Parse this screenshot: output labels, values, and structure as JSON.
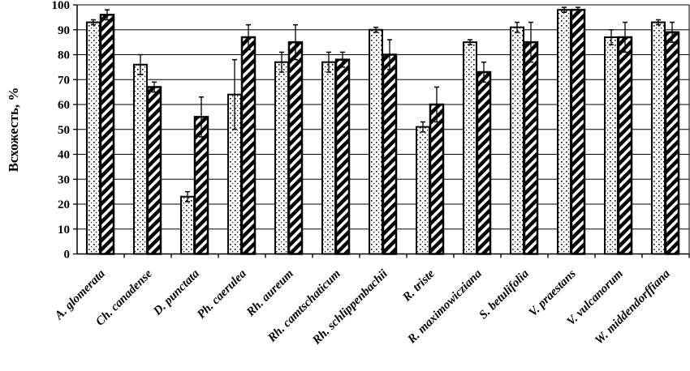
{
  "chart_data": {
    "type": "bar",
    "title": "",
    "xlabel": "",
    "ylabel": "Всхожесть, %",
    "ylim": [
      0,
      100
    ],
    "yticks": [
      "0",
      "10",
      "20",
      "30",
      "40",
      "50",
      "60",
      "70",
      "80",
      "90",
      "100"
    ],
    "grid": true,
    "categories": [
      "A. glomerata",
      "Ch. canadense",
      "D. punctata",
      "Ph. caerulea",
      "Rh. aureum",
      "Rh. camtschaticum",
      "Rh. schlippenbachii",
      "R. triste",
      "R. maximowicziana",
      "S. betulifolia",
      "V. praestans",
      "V. vulcanorum",
      "W. middendorffiana"
    ],
    "series": [
      {
        "pattern": "dotted",
        "values": [
          93,
          76,
          23,
          64,
          77,
          77,
          90,
          51,
          85,
          91,
          98,
          87,
          93
        ],
        "errors": [
          1,
          4,
          2,
          14,
          4,
          4,
          1,
          2,
          1,
          2,
          1,
          3,
          1
        ]
      },
      {
        "pattern": "diagonal-stripes",
        "values": [
          96,
          67,
          55,
          87,
          85,
          78,
          80,
          60,
          73,
          85,
          98,
          87,
          89
        ],
        "errors": [
          2,
          2,
          8,
          5,
          7,
          3,
          6,
          7,
          4,
          8,
          1,
          6,
          4
        ]
      }
    ],
    "colors": {
      "bar_outline": "#000000",
      "background": "#ffffff"
    }
  }
}
